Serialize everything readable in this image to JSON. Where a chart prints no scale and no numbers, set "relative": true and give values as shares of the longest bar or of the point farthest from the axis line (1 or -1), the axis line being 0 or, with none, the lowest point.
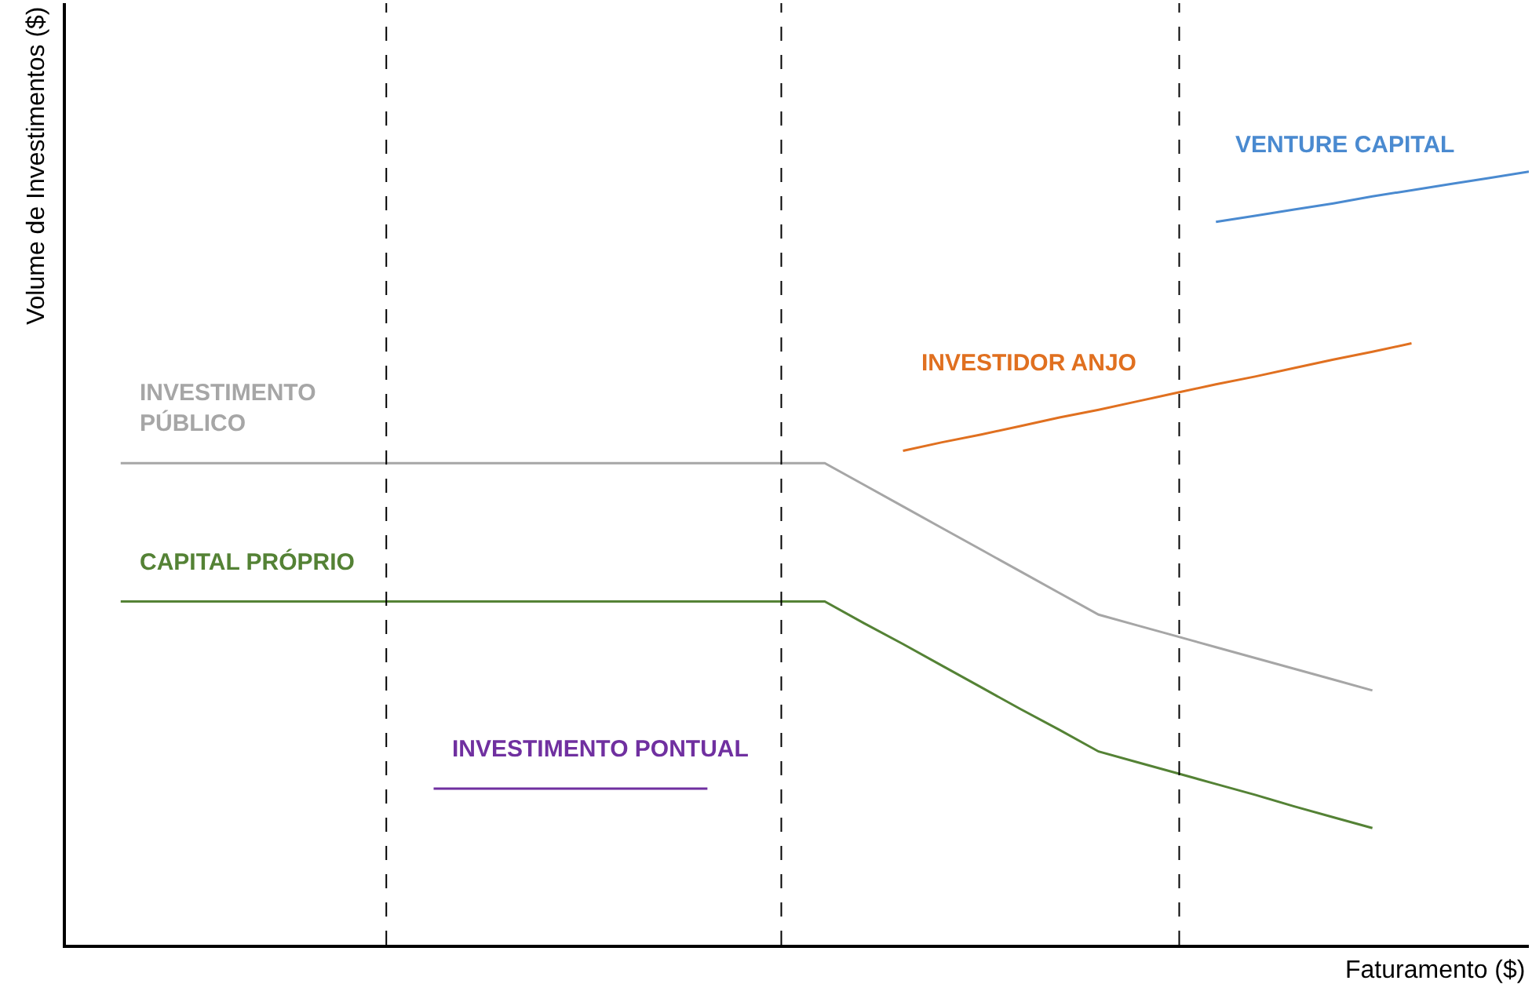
{
  "chart_data": {
    "type": "line",
    "relative": true,
    "xlabel": "Faturamento ($)",
    "ylabel": "Volume de Investimentos ($)",
    "legend": false,
    "marker": "none",
    "line_style": "solid",
    "categories": [
      null,
      null,
      null,
      null,
      null,
      null,
      null,
      null,
      null,
      null,
      null,
      null,
      null,
      null,
      null,
      null,
      null,
      null,
      null,
      null,
      null,
      null,
      null,
      null,
      null,
      null,
      null,
      null,
      null,
      null,
      null,
      null,
      null,
      null,
      null,
      null,
      null
    ],
    "series": [
      {
        "name": "INVESTIMENTO\nPÚBLICO",
        "color": "#a6a6a6",
        "values": [
          0.623,
          0.623,
          0.623,
          0.623,
          0.623,
          0.623,
          0.623,
          0.623,
          0.623,
          0.623,
          0.623,
          0.623,
          0.623,
          0.623,
          0.623,
          0.623,
          0.623,
          0.623,
          0.623,
          0.595,
          0.567,
          0.539,
          0.511,
          0.483,
          0.455,
          0.427,
          0.413,
          0.399,
          0.385,
          0.371,
          0.357,
          0.343,
          0.329,
          null,
          null,
          null,
          null
        ]
      },
      {
        "name": "CAPITAL PRÓPRIO",
        "color": "#548235",
        "values": [
          0.444,
          0.444,
          0.444,
          0.444,
          0.444,
          0.444,
          0.444,
          0.444,
          0.444,
          0.444,
          0.444,
          0.444,
          0.444,
          0.444,
          0.444,
          0.444,
          0.444,
          0.444,
          0.444,
          0.416,
          0.389,
          0.361,
          0.333,
          0.305,
          0.278,
          0.25,
          0.236,
          0.222,
          0.208,
          0.194,
          0.179,
          0.165,
          0.151,
          null,
          null,
          null,
          null
        ]
      },
      {
        "name": "INVESTIMENTO PONTUAL",
        "color": "#7030a0",
        "values": [
          null,
          null,
          null,
          null,
          null,
          null,
          null,
          null,
          0.202,
          0.202,
          0.202,
          0.202,
          0.202,
          0.202,
          0.202,
          0.202,
          null,
          null,
          null,
          null,
          null,
          null,
          null,
          null,
          null,
          null,
          null,
          null,
          null,
          null,
          null,
          null,
          null,
          null,
          null,
          null,
          null
        ]
      },
      {
        "name": "INVESTIDOR ANJO",
        "color": "#e07020",
        "values": [
          null,
          null,
          null,
          null,
          null,
          null,
          null,
          null,
          null,
          null,
          null,
          null,
          null,
          null,
          null,
          null,
          null,
          null,
          null,
          null,
          0.639,
          0.65,
          0.66,
          0.671,
          0.682,
          0.692,
          0.703,
          0.714,
          0.725,
          0.735,
          0.746,
          0.757,
          0.767,
          0.778,
          null,
          null,
          null
        ]
      },
      {
        "name": "VENTURE CAPITAL",
        "color": "#4a8ad0",
        "values": [
          null,
          null,
          null,
          null,
          null,
          null,
          null,
          null,
          null,
          null,
          null,
          null,
          null,
          null,
          null,
          null,
          null,
          null,
          null,
          null,
          null,
          null,
          null,
          null,
          null,
          null,
          null,
          null,
          0.935,
          0.943,
          0.951,
          0.959,
          0.968,
          0.976,
          0.984,
          0.992,
          1.0
        ]
      }
    ]
  }
}
